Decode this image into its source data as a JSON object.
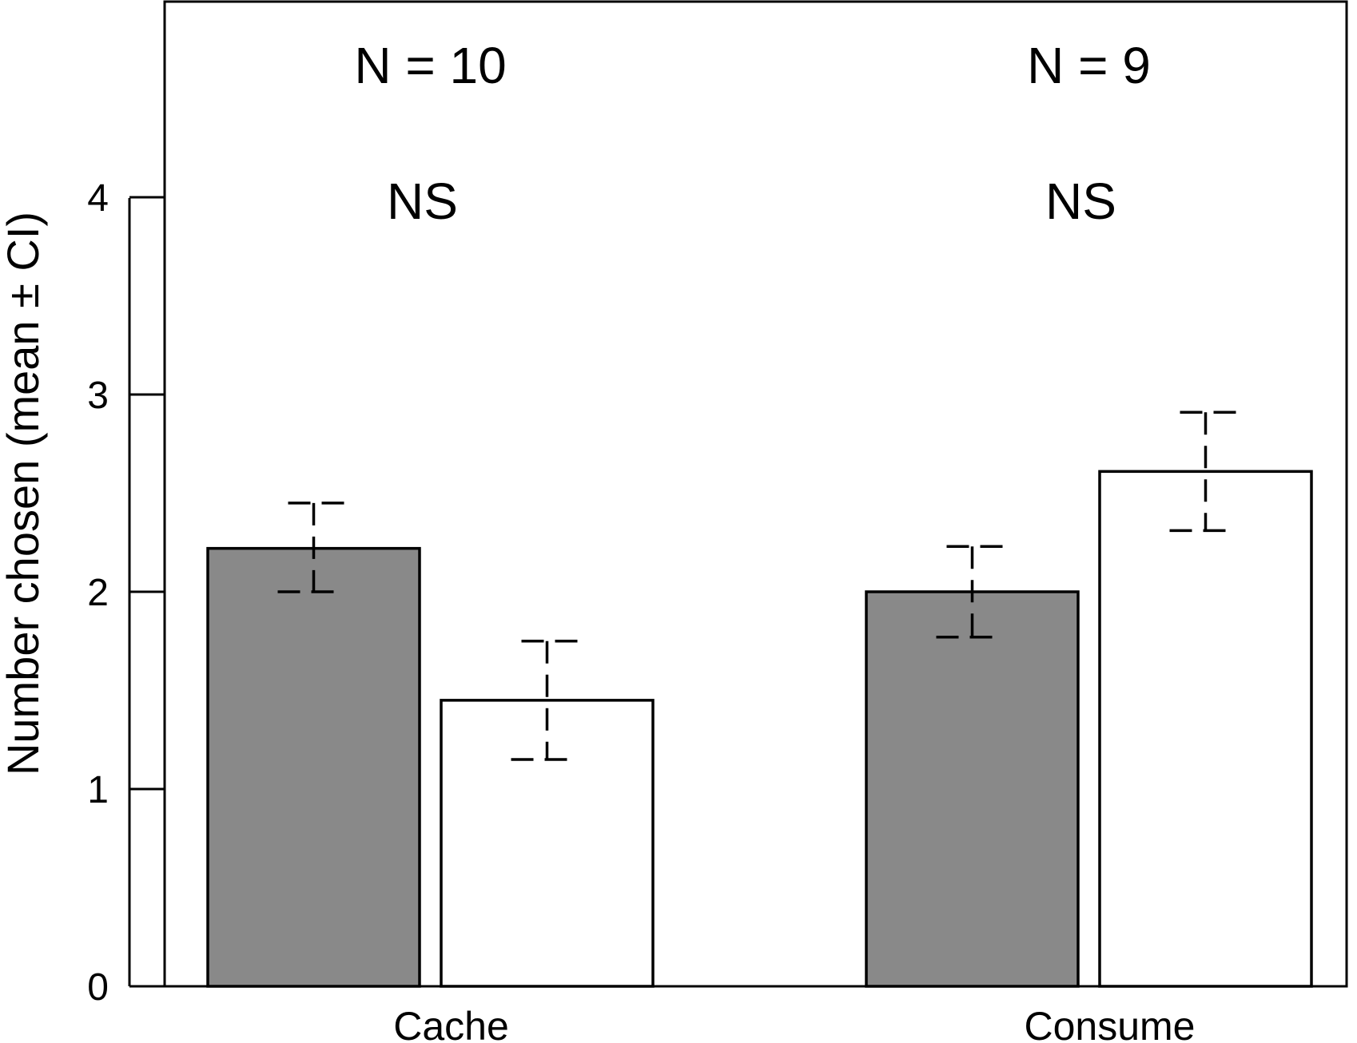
{
  "chart_data": {
    "type": "bar",
    "title": "",
    "xlabel": "",
    "ylabel": "Number chosen (mean ± CI)",
    "ylim": [
      0,
      5
    ],
    "yticks": [
      0,
      1,
      2,
      3,
      4
    ],
    "categories": [
      "Cache",
      "Consume"
    ],
    "series": [
      {
        "fill": "#898989",
        "values": [
          2.22,
          2.0
        ],
        "ci_lower": [
          2.0,
          1.77
        ],
        "ci_upper": [
          2.45,
          2.23
        ]
      },
      {
        "fill": "#ffffff",
        "values": [
          1.45,
          2.61
        ],
        "ci_lower": [
          1.15,
          2.31
        ],
        "ci_upper": [
          1.75,
          2.91
        ]
      }
    ],
    "group_annotations": [
      {
        "n_label": "N = 10",
        "sig_label": "NS"
      },
      {
        "n_label": "N = 9",
        "sig_label": "NS"
      }
    ],
    "grid": false,
    "legend": "none",
    "error_bar_style": "dashed"
  }
}
